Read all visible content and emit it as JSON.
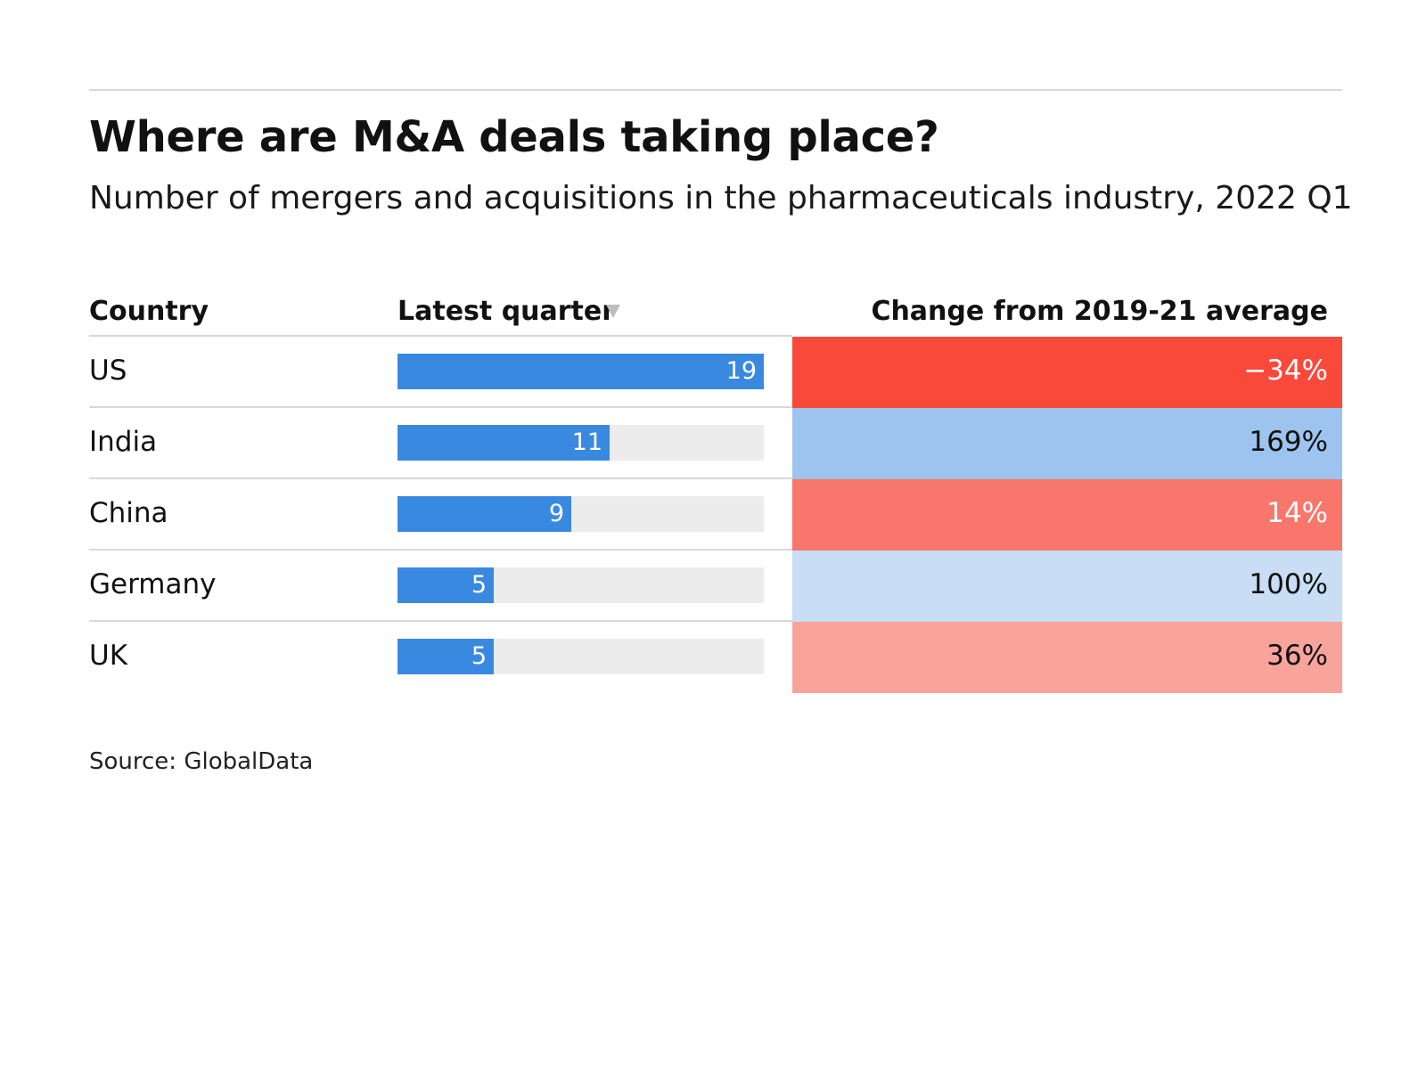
{
  "chart_data": {
    "type": "table",
    "title": "Where are M&A deals taking place?",
    "subtitle": "Number of mergers and acquisitions in the pharmaceuticals industry, 2022 Q1",
    "columns": [
      "Country",
      "Latest quarter",
      "Change from 2019-21 average"
    ],
    "sort_column": "Latest quarter",
    "sort_direction": "descending",
    "bar_max": 19,
    "rows": [
      {
        "country": "US",
        "latest_quarter": 19,
        "change_label": "−34%",
        "change_pct": -34,
        "cell_color": "#f8493b",
        "text_color": "#ffffff"
      },
      {
        "country": "India",
        "latest_quarter": 11,
        "change_label": "169%",
        "change_pct": 169,
        "cell_color": "#9cc4ee",
        "text_color": "#111111"
      },
      {
        "country": "China",
        "latest_quarter": 9,
        "change_label": "14%",
        "change_pct": 14,
        "cell_color": "#f8766b",
        "text_color": "#ffffff"
      },
      {
        "country": "Germany",
        "latest_quarter": 5,
        "change_label": "100%",
        "change_pct": 100,
        "cell_color": "#c9ddf4",
        "text_color": "#111111"
      },
      {
        "country": "UK",
        "latest_quarter": 5,
        "change_label": "36%",
        "change_pct": 36,
        "cell_color": "#f9a49b",
        "text_color": "#111111"
      }
    ],
    "source": "Source: GlobalData"
  },
  "colors": {
    "bar": "#3a89e0",
    "bar_track": "#ececec",
    "rule": "#d9d9d9",
    "sort_icon": "#bdbdbd"
  },
  "icons": {
    "sort": "sort-descending-triangle-icon"
  }
}
